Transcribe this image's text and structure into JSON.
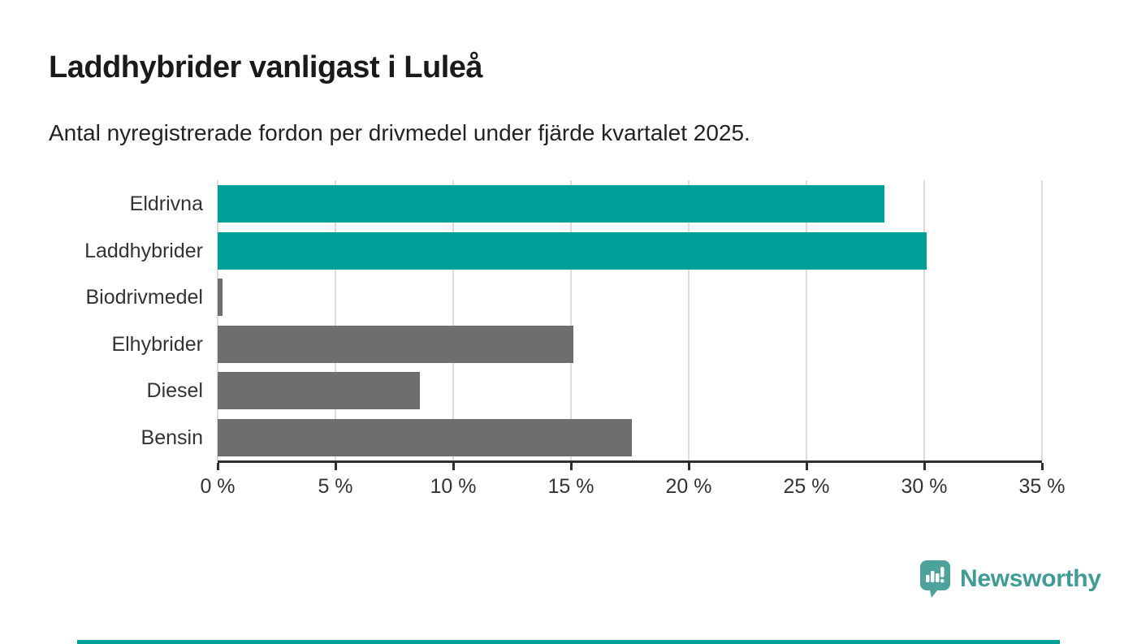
{
  "chart_data": {
    "type": "bar",
    "orientation": "horizontal",
    "title": "Laddhybrider vanligast i Luleå",
    "subtitle": "Antal nyregistrerade fordon per drivmedel under fjärde kvartalet 2025.",
    "categories": [
      "Eldrivna",
      "Laddhybrider",
      "Biodrivmedel",
      "Elhybrider",
      "Diesel",
      "Bensin"
    ],
    "values": [
      28.3,
      30.1,
      0.2,
      15.1,
      8.6,
      17.6
    ],
    "unit": "%",
    "bar_colors": [
      "#00a099",
      "#00a099",
      "#6e6e6e",
      "#6e6e6e",
      "#6e6e6e",
      "#6e6e6e"
    ],
    "xlabel": "",
    "ylabel": "",
    "xlim": [
      0,
      35
    ],
    "x_ticks": [
      0,
      5,
      10,
      15,
      20,
      25,
      30,
      35
    ],
    "x_tick_labels": [
      "0 %",
      "5 %",
      "10 %",
      "15 %",
      "20 %",
      "25 %",
      "30 %",
      "35 %"
    ],
    "grid": "vertical",
    "legend": "none",
    "highlight_color": "#00a099",
    "default_color": "#6e6e6e"
  },
  "branding": {
    "logo_text": "Newsworthy",
    "logo_color": "#3f9b94",
    "accent_color": "#00a099"
  }
}
